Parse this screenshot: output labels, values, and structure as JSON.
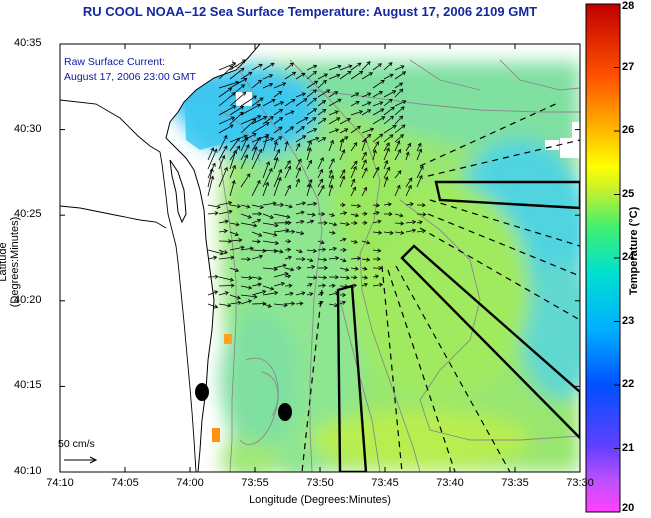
{
  "title": "RU COOL  NOAA–12  Sea Surface Temperature:  August 17, 2006 2109 GMT",
  "axes": {
    "xlabel": "Longitude (Degrees:Minutes)",
    "ylabel": "Latitude (Degrees:Minutes)",
    "x_ticks": [
      "74:10",
      "74:05",
      "74:00",
      "73:55",
      "73:50",
      "73:45",
      "73:40",
      "73:35",
      "73:30"
    ],
    "y_ticks": [
      "40:35",
      "40:30",
      "40:25",
      "40:20",
      "40:15",
      "40:10"
    ]
  },
  "legend": {
    "line1": "Raw Surface Current:",
    "line2": "August 17, 2006 23:00 GMT"
  },
  "scale_label": "50 cm/s",
  "colorbar": {
    "label": "Temperature (°C)",
    "min": 20,
    "max": 28,
    "ticks": [
      "28",
      "27",
      "26",
      "25",
      "24",
      "23",
      "22",
      "21",
      "20"
    ]
  },
  "colors": {
    "title": "#1428a0",
    "land": "#fffef5",
    "water_warm": "#9ae860",
    "water_cool": "#3cc8f0"
  }
}
